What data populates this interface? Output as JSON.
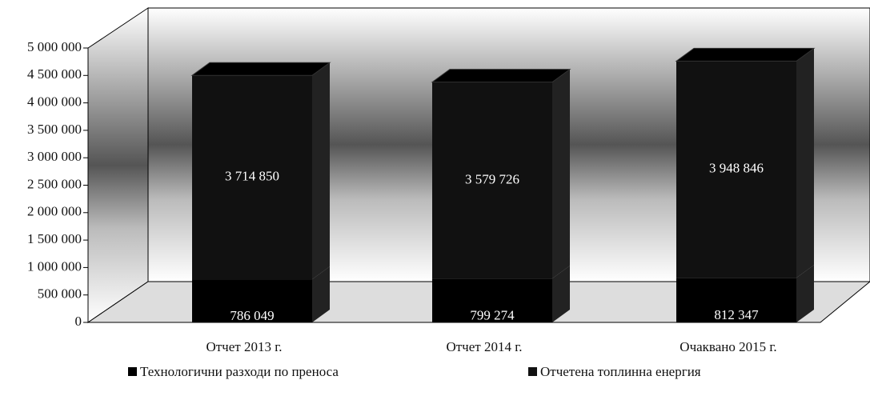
{
  "chart_data": {
    "type": "bar",
    "stacked": true,
    "categories": [
      "Отчет 2013 г.",
      "Отчет 2014 г.",
      "Очаквано 2015 г."
    ],
    "series": [
      {
        "name": "Технологични разходи по преноса",
        "color": "#000000",
        "values": [
          786049,
          799274,
          812347
        ],
        "value_labels": [
          "786 049",
          "799 274",
          "812 347"
        ]
      },
      {
        "name": "Отчетена топлинна енергия",
        "color": "#111111",
        "values": [
          3714850,
          3579726,
          3948846
        ],
        "value_labels": [
          "3 714 850",
          "3 579 726",
          "3 948 846"
        ]
      }
    ],
    "ylim": [
      0,
      5000000
    ],
    "yticks": [
      {
        "value": 0,
        "label": "0"
      },
      {
        "value": 500000,
        "label": "500 000"
      },
      {
        "value": 1000000,
        "label": "1 000 000"
      },
      {
        "value": 1500000,
        "label": "1 500 000"
      },
      {
        "value": 2000000,
        "label": "2 000 000"
      },
      {
        "value": 2500000,
        "label": "2 500 000"
      },
      {
        "value": 3000000,
        "label": "3 000 000"
      },
      {
        "value": 3500000,
        "label": "3 500 000"
      },
      {
        "value": 4000000,
        "label": "4 000 000"
      },
      {
        "value": 4500000,
        "label": "4 500 000"
      },
      {
        "value": 5000000,
        "label": "5 000 000"
      }
    ],
    "grid": false
  }
}
